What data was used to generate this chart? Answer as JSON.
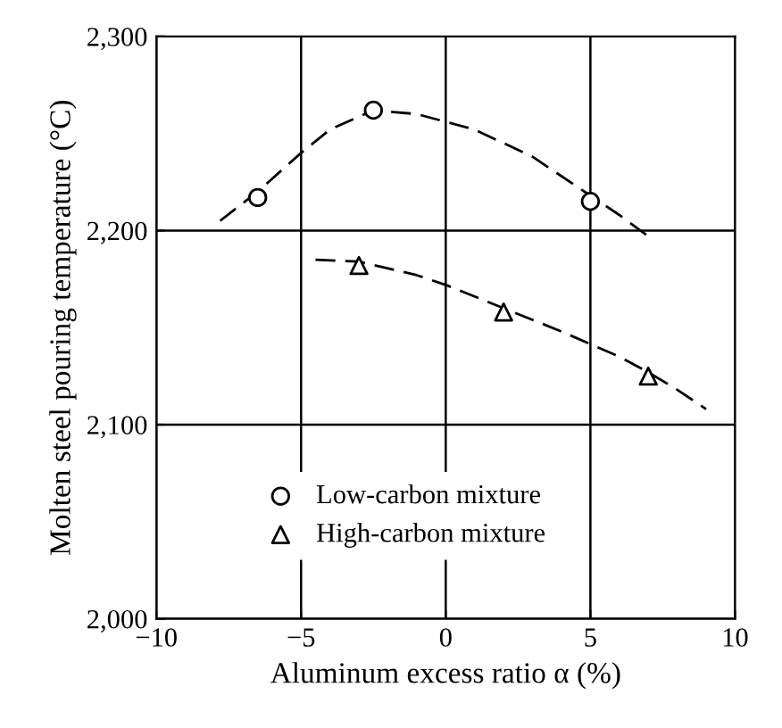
{
  "chart_data": {
    "type": "scatter",
    "xlabel": "Aluminum excess ratio α (%)",
    "ylabel": "Molten steel pouring temperature (°C)",
    "xlim": [
      -10,
      10
    ],
    "ylim": [
      2000,
      2300
    ],
    "xticks": [
      {
        "value": -10,
        "label": "−10"
      },
      {
        "value": -5,
        "label": "−5"
      },
      0,
      5,
      10
    ],
    "yticks": [
      {
        "value": 2000,
        "label": "2,000"
      },
      {
        "value": 2100,
        "label": "2,100"
      },
      {
        "value": 2200,
        "label": "2,200"
      },
      {
        "value": 2300,
        "label": "2,300"
      }
    ],
    "grid": true,
    "legend": "bottom",
    "series": [
      {
        "name": "Low-carbon mixture",
        "marker": "circle",
        "color": "#000000",
        "x": [
          -6.5,
          -2.5,
          5
        ],
        "values": [
          2217,
          2262,
          2215
        ]
      },
      {
        "name": "High-carbon mixture",
        "marker": "triangle",
        "color": "#000000",
        "x": [
          -3,
          2,
          7
        ],
        "values": [
          2182,
          2158,
          2125
        ]
      },
      {
        "type": "line",
        "line_style": "dashed",
        "color": "#000000",
        "x": [
          -7.8,
          -6.5,
          -5,
          -4,
          -2.5,
          -1,
          1,
          3,
          5,
          6,
          7
        ],
        "values": [
          2205,
          2220,
          2240,
          2252,
          2262,
          2260,
          2252,
          2238,
          2218,
          2208,
          2197
        ]
      },
      {
        "type": "line",
        "line_style": "dashed",
        "color": "#000000",
        "x": [
          -4.5,
          -3,
          -1,
          0,
          2,
          4,
          6,
          7,
          8,
          9
        ],
        "values": [
          2185,
          2184,
          2177,
          2172,
          2160,
          2148,
          2135,
          2127,
          2118,
          2108
        ]
      }
    ]
  }
}
